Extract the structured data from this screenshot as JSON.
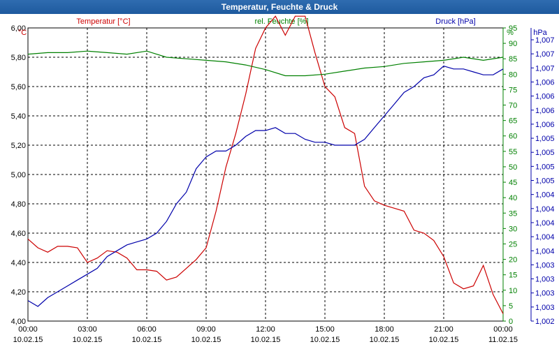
{
  "chart_data": {
    "type": "line",
    "title": "Temperatur, Feuchte & Druck",
    "legend": {
      "temperature": "Temperatur [°C]",
      "humidity": "rel. Feuchte [%]",
      "pressure": "Druck [hPa]"
    },
    "axes": {
      "left_unit": "°C",
      "middle_unit": "%",
      "right_unit": "hPa",
      "left_ticks": [
        "4,00",
        "4,20",
        "4,40",
        "4,60",
        "4,80",
        "5,00",
        "5,20",
        "5,40",
        "5,60",
        "5,80",
        "6,00"
      ],
      "left_range": [
        4.0,
        6.0
      ],
      "middle_ticks": [
        "0",
        "5",
        "10",
        "15",
        "20",
        "25",
        "30",
        "35",
        "40",
        "45",
        "50",
        "55",
        "60",
        "65",
        "70",
        "75",
        "80",
        "85",
        "90",
        "95"
      ],
      "middle_range": [
        0,
        95
      ],
      "right_ticks": [
        "1,002",
        "1,003",
        "1,003",
        "1,003",
        "1,003",
        "1,004",
        "1,004",
        "1,004",
        "1,004",
        "1,004",
        "1,005",
        "1,005",
        "1,005",
        "1,005",
        "1,006",
        "1,006",
        "1,006",
        "1,006",
        "1,007",
        "1,007",
        "1,007"
      ],
      "x_time_labels": [
        "00:00",
        "03:00",
        "06:00",
        "09:00",
        "12:00",
        "15:00",
        "18:00",
        "21:00",
        "00:00"
      ],
      "x_date_labels": [
        "10.02.15",
        "10.02.15",
        "10.02.15",
        "10.02.15",
        "10.02.15",
        "10.02.15",
        "10.02.15",
        "10.02.15",
        "11.02.15"
      ],
      "x_range_hours": [
        0,
        24
      ],
      "grid": true
    },
    "colors": {
      "temperature": "#cc0000",
      "humidity": "#008000",
      "pressure": "#0000aa"
    },
    "series": [
      {
        "name": "Temperatur [°C]",
        "axis": "left",
        "x_hours": [
          0,
          0.5,
          1,
          1.5,
          2,
          2.5,
          3,
          3.5,
          4,
          4.5,
          5,
          5.5,
          6,
          6.5,
          7,
          7.5,
          8,
          8.5,
          9,
          9.5,
          10,
          10.5,
          11,
          11.5,
          12,
          12.5,
          13,
          13.5,
          14,
          14.5,
          15,
          15.5,
          16,
          16.5,
          17,
          17.5,
          18,
          18.5,
          19,
          19.5,
          20,
          20.5,
          21,
          21.5,
          22,
          22.5,
          23,
          23.5,
          24
        ],
        "values": [
          4.56,
          4.5,
          4.47,
          4.51,
          4.51,
          4.5,
          4.4,
          4.43,
          4.48,
          4.47,
          4.43,
          4.35,
          4.35,
          4.34,
          4.28,
          4.3,
          4.36,
          4.42,
          4.5,
          4.75,
          5.05,
          5.28,
          5.55,
          5.86,
          6.0,
          6.08,
          5.95,
          6.08,
          6.08,
          5.83,
          5.6,
          5.53,
          5.32,
          5.28,
          4.92,
          4.82,
          4.79,
          4.77,
          4.75,
          4.62,
          4.6,
          4.55,
          4.44,
          4.26,
          4.22,
          4.24,
          4.38,
          4.18,
          4.05
        ]
      },
      {
        "name": "rel. Feuchte [%]",
        "axis": "middle",
        "x_hours": [
          0,
          1,
          2,
          3,
          4,
          5,
          6,
          7,
          8,
          9,
          10,
          11,
          12,
          13,
          14,
          15,
          16,
          17,
          18,
          19,
          20,
          21,
          22,
          23,
          24
        ],
        "values": [
          86.5,
          87,
          87,
          87.5,
          87,
          86.5,
          87.5,
          85.5,
          85,
          84.5,
          84,
          83,
          81.5,
          79.5,
          79.5,
          80,
          81,
          82,
          82.5,
          83.5,
          84,
          84.5,
          85.5,
          84.5,
          85.5
        ]
      },
      {
        "name": "Druck [hPa]",
        "axis": "right",
        "x_hours": [
          0,
          0.5,
          1,
          1.5,
          2,
          2.5,
          3,
          3.5,
          4,
          4.5,
          5,
          5.5,
          6,
          6.5,
          7,
          7.5,
          8,
          8.5,
          9,
          9.5,
          10,
          10.5,
          11,
          11.5,
          12,
          12.5,
          13,
          13.5,
          14,
          14.5,
          15,
          15.5,
          16,
          16.5,
          17,
          17.5,
          18,
          18.5,
          19,
          19.5,
          20,
          20.5,
          21,
          21.5,
          22,
          22.5,
          23,
          23.5,
          24
        ],
        "values": [
          7,
          5,
          8,
          10,
          12,
          14,
          16,
          18,
          22,
          24,
          26,
          27,
          28,
          30,
          34,
          40,
          44,
          52,
          56,
          58,
          58,
          60,
          63,
          65,
          65,
          66,
          64,
          64,
          62,
          61,
          61,
          60,
          60,
          60,
          62,
          66,
          70,
          74,
          78,
          80,
          83,
          84,
          87,
          86,
          86,
          85,
          84,
          84,
          86
        ],
        "values_unit": "percent of plot height (unlabeled scale ticks)"
      }
    ]
  }
}
